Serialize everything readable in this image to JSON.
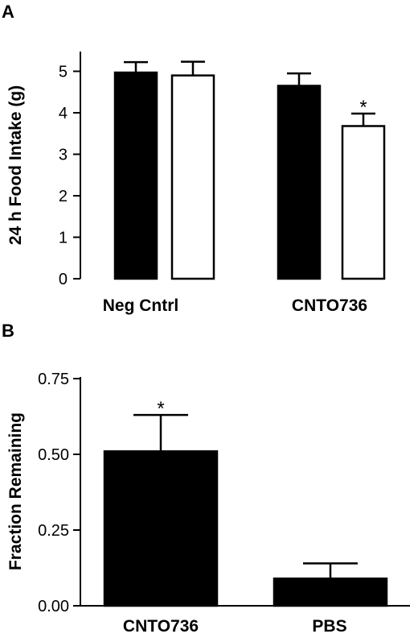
{
  "chart_data": [
    {
      "panel": "A",
      "type": "bar",
      "ylabel": "24 h Food Intake (g)",
      "xlabel": "",
      "ylim": [
        0,
        5.5
      ],
      "yticks": [
        "0",
        "1",
        "2",
        "3",
        "4",
        "5"
      ],
      "categories": [
        "Neg Cntrl",
        "CNTO736"
      ],
      "series": [
        {
          "values": [
            4.97,
            4.65
          ],
          "errors": [
            0.25,
            0.3
          ],
          "color": "#000000"
        },
        {
          "values": [
            4.9,
            3.68
          ],
          "errors": [
            0.33,
            0.3
          ],
          "color": "#ffffff"
        }
      ],
      "annotations": [
        {
          "category": 1,
          "series": 1,
          "text": "*"
        }
      ],
      "legend": "none",
      "grid": false
    },
    {
      "panel": "B",
      "type": "bar",
      "ylabel": "Fraction Remaining",
      "xlabel": "",
      "ylim": [
        0,
        0.75
      ],
      "yticks": [
        "0.00",
        "0.25",
        "0.50",
        "0.75"
      ],
      "categories": [
        "CNTO736",
        "PBS"
      ],
      "series": [
        {
          "values": [
            0.51,
            0.09
          ],
          "errors": [
            0.12,
            0.05
          ],
          "color": "#000000"
        }
      ],
      "annotations": [
        {
          "category": 0,
          "series": 0,
          "text": "*"
        }
      ],
      "legend": "none",
      "grid": false
    }
  ]
}
